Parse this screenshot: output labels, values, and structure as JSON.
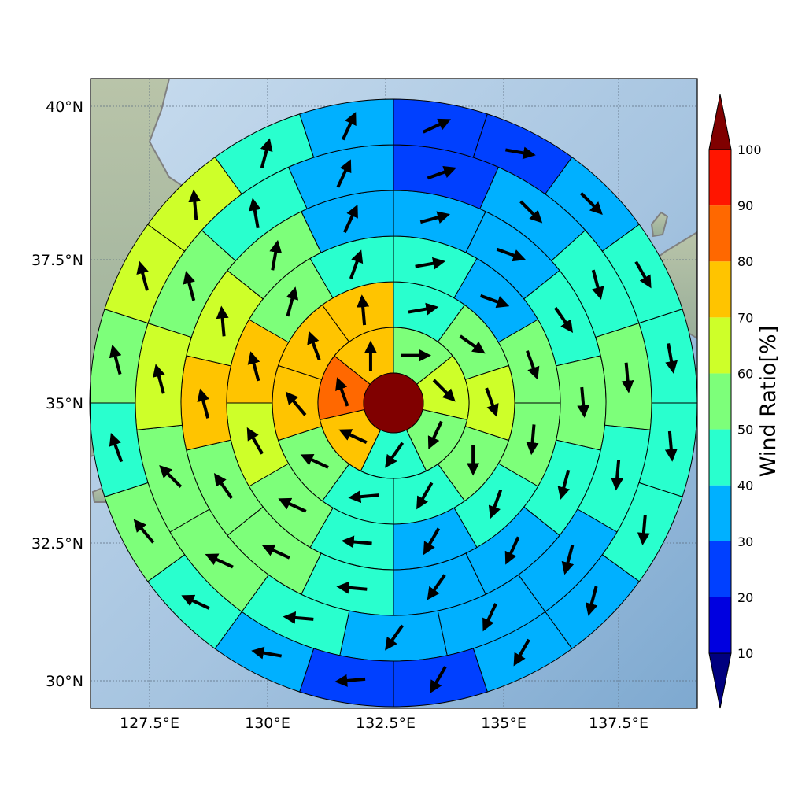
{
  "map": {
    "lat_ticks": [
      "30°N",
      "32.5°N",
      "35°N",
      "37.5°N",
      "40°N"
    ],
    "lon_ticks": [
      "127.5°E",
      "130°E",
      "132.5°E",
      "135°E",
      "137.5°E"
    ],
    "colors": {
      "ocean": "#a9c6e0",
      "land": "#9fb29a",
      "coast": "#808080",
      "center": "#800000"
    }
  },
  "colorbar": {
    "title": "Wind Ratio[%]",
    "tick_labels": [
      "10",
      "20",
      "30",
      "40",
      "50",
      "60",
      "70",
      "80",
      "90",
      "100"
    ],
    "levels": [
      {
        "range": "0-10",
        "color": "#00007f"
      },
      {
        "range": "10-20",
        "color": "#0000e0"
      },
      {
        "range": "20-30",
        "color": "#0040ff"
      },
      {
        "range": "30-40",
        "color": "#00b0ff"
      },
      {
        "range": "40-50",
        "color": "#29ffce"
      },
      {
        "range": "50-60",
        "color": "#7dff7a"
      },
      {
        "range": "60-70",
        "color": "#ceff29"
      },
      {
        "range": "70-80",
        "color": "#ffc400"
      },
      {
        "range": "80-90",
        "color": "#ff6800"
      },
      {
        "range": ">100",
        "color": "#800000"
      }
    ],
    "extra_band": {
      "range": "90-100",
      "color": "#ff1500"
    }
  },
  "chart_data": {
    "type": "heatmap",
    "description_units": "Wind Ratio[%] per polar sector; arrow direction in degrees (0 = north, clockwise)",
    "rings": [
      {
        "ring": 1,
        "sectors": [
          {
            "ratio": 55,
            "dir": 90
          },
          {
            "ratio": 65,
            "dir": 135
          },
          {
            "ratio": 55,
            "dir": 205
          },
          {
            "ratio": 45,
            "dir": 215
          },
          {
            "ratio": 75,
            "dir": 295
          },
          {
            "ratio": 85,
            "dir": 340
          },
          {
            "ratio": 75,
            "dir": 0
          }
        ]
      },
      {
        "ring": 2,
        "sectors": [
          {
            "ratio": 45,
            "dir": 80
          },
          {
            "ratio": 55,
            "dir": 125
          },
          {
            "ratio": 65,
            "dir": 160
          },
          {
            "ratio": 55,
            "dir": 180
          },
          {
            "ratio": 45,
            "dir": 210
          },
          {
            "ratio": 45,
            "dir": 265
          },
          {
            "ratio": 55,
            "dir": 295
          },
          {
            "ratio": 75,
            "dir": 320
          },
          {
            "ratio": 75,
            "dir": 340
          },
          {
            "ratio": 75,
            "dir": 355
          }
        ]
      },
      {
        "ring": 3,
        "sectors": [
          {
            "ratio": 45,
            "dir": 80
          },
          {
            "ratio": 35,
            "dir": 110
          },
          {
            "ratio": 55,
            "dir": 160
          },
          {
            "ratio": 55,
            "dir": 185
          },
          {
            "ratio": 45,
            "dir": 200
          },
          {
            "ratio": 35,
            "dir": 210
          },
          {
            "ratio": 45,
            "dir": 275
          },
          {
            "ratio": 55,
            "dir": 295
          },
          {
            "ratio": 65,
            "dir": 330
          },
          {
            "ratio": 75,
            "dir": 345
          },
          {
            "ratio": 55,
            "dir": 15
          },
          {
            "ratio": 45,
            "dir": 20
          }
        ]
      },
      {
        "ring": 4,
        "sectors": [
          {
            "ratio": 35,
            "dir": 75
          },
          {
            "ratio": 35,
            "dir": 110
          },
          {
            "ratio": 45,
            "dir": 145
          },
          {
            "ratio": 55,
            "dir": 175
          },
          {
            "ratio": 45,
            "dir": 195
          },
          {
            "ratio": 35,
            "dir": 205
          },
          {
            "ratio": 35,
            "dir": 215
          },
          {
            "ratio": 45,
            "dir": 275
          },
          {
            "ratio": 55,
            "dir": 295
          },
          {
            "ratio": 55,
            "dir": 325
          },
          {
            "ratio": 75,
            "dir": 345
          },
          {
            "ratio": 65,
            "dir": 355
          },
          {
            "ratio": 55,
            "dir": 10
          },
          {
            "ratio": 35,
            "dir": 25
          }
        ]
      },
      {
        "ring": 5,
        "sectors": [
          {
            "ratio": 25,
            "dir": 70
          },
          {
            "ratio": 35,
            "dir": 135
          },
          {
            "ratio": 45,
            "dir": 165
          },
          {
            "ratio": 55,
            "dir": 175
          },
          {
            "ratio": 45,
            "dir": 185
          },
          {
            "ratio": 35,
            "dir": 195
          },
          {
            "ratio": 35,
            "dir": 205
          },
          {
            "ratio": 35,
            "dir": 215
          },
          {
            "ratio": 45,
            "dir": 275
          },
          {
            "ratio": 55,
            "dir": 295
          },
          {
            "ratio": 55,
            "dir": 315
          },
          {
            "ratio": 65,
            "dir": 345
          },
          {
            "ratio": 55,
            "dir": 345
          },
          {
            "ratio": 45,
            "dir": 350
          },
          {
            "ratio": 35,
            "dir": 25
          }
        ]
      },
      {
        "ring": 6,
        "sectors": [
          {
            "ratio": 25,
            "dir": 65
          },
          {
            "ratio": 25,
            "dir": 100
          },
          {
            "ratio": 35,
            "dir": 135
          },
          {
            "ratio": 45,
            "dir": 150
          },
          {
            "ratio": 45,
            "dir": 170
          },
          {
            "ratio": 45,
            "dir": 175
          },
          {
            "ratio": 45,
            "dir": 185
          },
          {
            "ratio": 35,
            "dir": 195
          },
          {
            "ratio": 35,
            "dir": 210
          },
          {
            "ratio": 25,
            "dir": 210
          },
          {
            "ratio": 25,
            "dir": 265
          },
          {
            "ratio": 35,
            "dir": 280
          },
          {
            "ratio": 45,
            "dir": 295
          },
          {
            "ratio": 55,
            "dir": 320
          },
          {
            "ratio": 45,
            "dir": 340
          },
          {
            "ratio": 55,
            "dir": 345
          },
          {
            "ratio": 65,
            "dir": 345
          },
          {
            "ratio": 65,
            "dir": 355
          },
          {
            "ratio": 45,
            "dir": 15
          },
          {
            "ratio": 35,
            "dir": 25
          }
        ]
      }
    ]
  }
}
